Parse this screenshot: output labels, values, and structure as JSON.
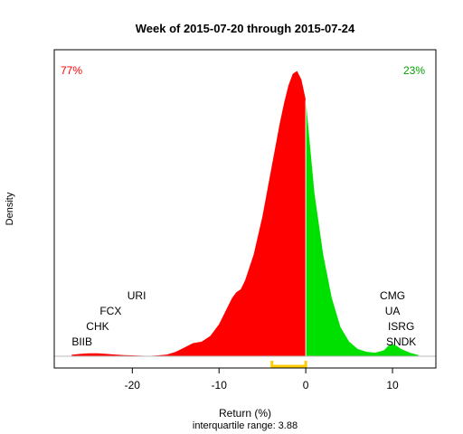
{
  "chart_data": {
    "type": "area",
    "title": "Week of 2015-07-20 through 2015-07-24",
    "xlabel": "Return (%)",
    "ylabel": "Density",
    "subtitle": "interquartile range: 3.88",
    "xlim": [
      -29,
      15
    ],
    "ylim": [
      0,
      1
    ],
    "xticks": [
      -20,
      -10,
      0,
      10
    ],
    "tick_labels": [
      "-20",
      "-10",
      "0",
      "10"
    ],
    "grid": false,
    "split_at": 0,
    "left_share": "77%",
    "right_share": "23%",
    "colors": {
      "negative": "#ff0000",
      "positive": "#00e000",
      "iqr_bracket": "#ffcc00",
      "boundary": "#ffffff"
    },
    "iqr": [
      -3.9,
      0
    ],
    "density": {
      "x": [
        -27,
        -26,
        -25,
        -24,
        -23,
        -22,
        -21,
        -20,
        -19,
        -18,
        -17,
        -16,
        -15,
        -14,
        -13,
        -12,
        -11,
        -10,
        -9,
        -8.5,
        -8,
        -7.5,
        -7,
        -6,
        -5,
        -4.5,
        -4,
        -3.5,
        -3,
        -2.5,
        -2,
        -1.5,
        -1,
        -0.5,
        0,
        0.5,
        1,
        2,
        3,
        4,
        5,
        6,
        7,
        8,
        9,
        9.5,
        10,
        10.5,
        11,
        12,
        13
      ],
      "y": [
        0.005,
        0.008,
        0.01,
        0.01,
        0.008,
        0.006,
        0.004,
        0.003,
        0.002,
        0.001,
        0.003,
        0.006,
        0.015,
        0.03,
        0.045,
        0.05,
        0.07,
        0.11,
        0.17,
        0.2,
        0.22,
        0.23,
        0.26,
        0.35,
        0.48,
        0.56,
        0.64,
        0.72,
        0.8,
        0.87,
        0.93,
        0.97,
        0.98,
        0.95,
        0.88,
        0.72,
        0.56,
        0.35,
        0.2,
        0.1,
        0.05,
        0.025,
        0.015,
        0.012,
        0.02,
        0.035,
        0.042,
        0.035,
        0.025,
        0.012,
        0.004
      ]
    },
    "stocks": {
      "left": [
        {
          "ticker": "URI",
          "return": -19.5
        },
        {
          "ticker": "FCX",
          "return": -22.5
        },
        {
          "ticker": "CHK",
          "return": -24.0
        },
        {
          "ticker": "BIIB",
          "return": -25.8
        }
      ],
      "right": [
        {
          "ticker": "CMG",
          "return": 10.0
        },
        {
          "ticker": "UA",
          "return": 10.0
        },
        {
          "ticker": "ISRG",
          "return": 11.0
        },
        {
          "ticker": "SNDK",
          "return": 11.0
        }
      ]
    }
  }
}
